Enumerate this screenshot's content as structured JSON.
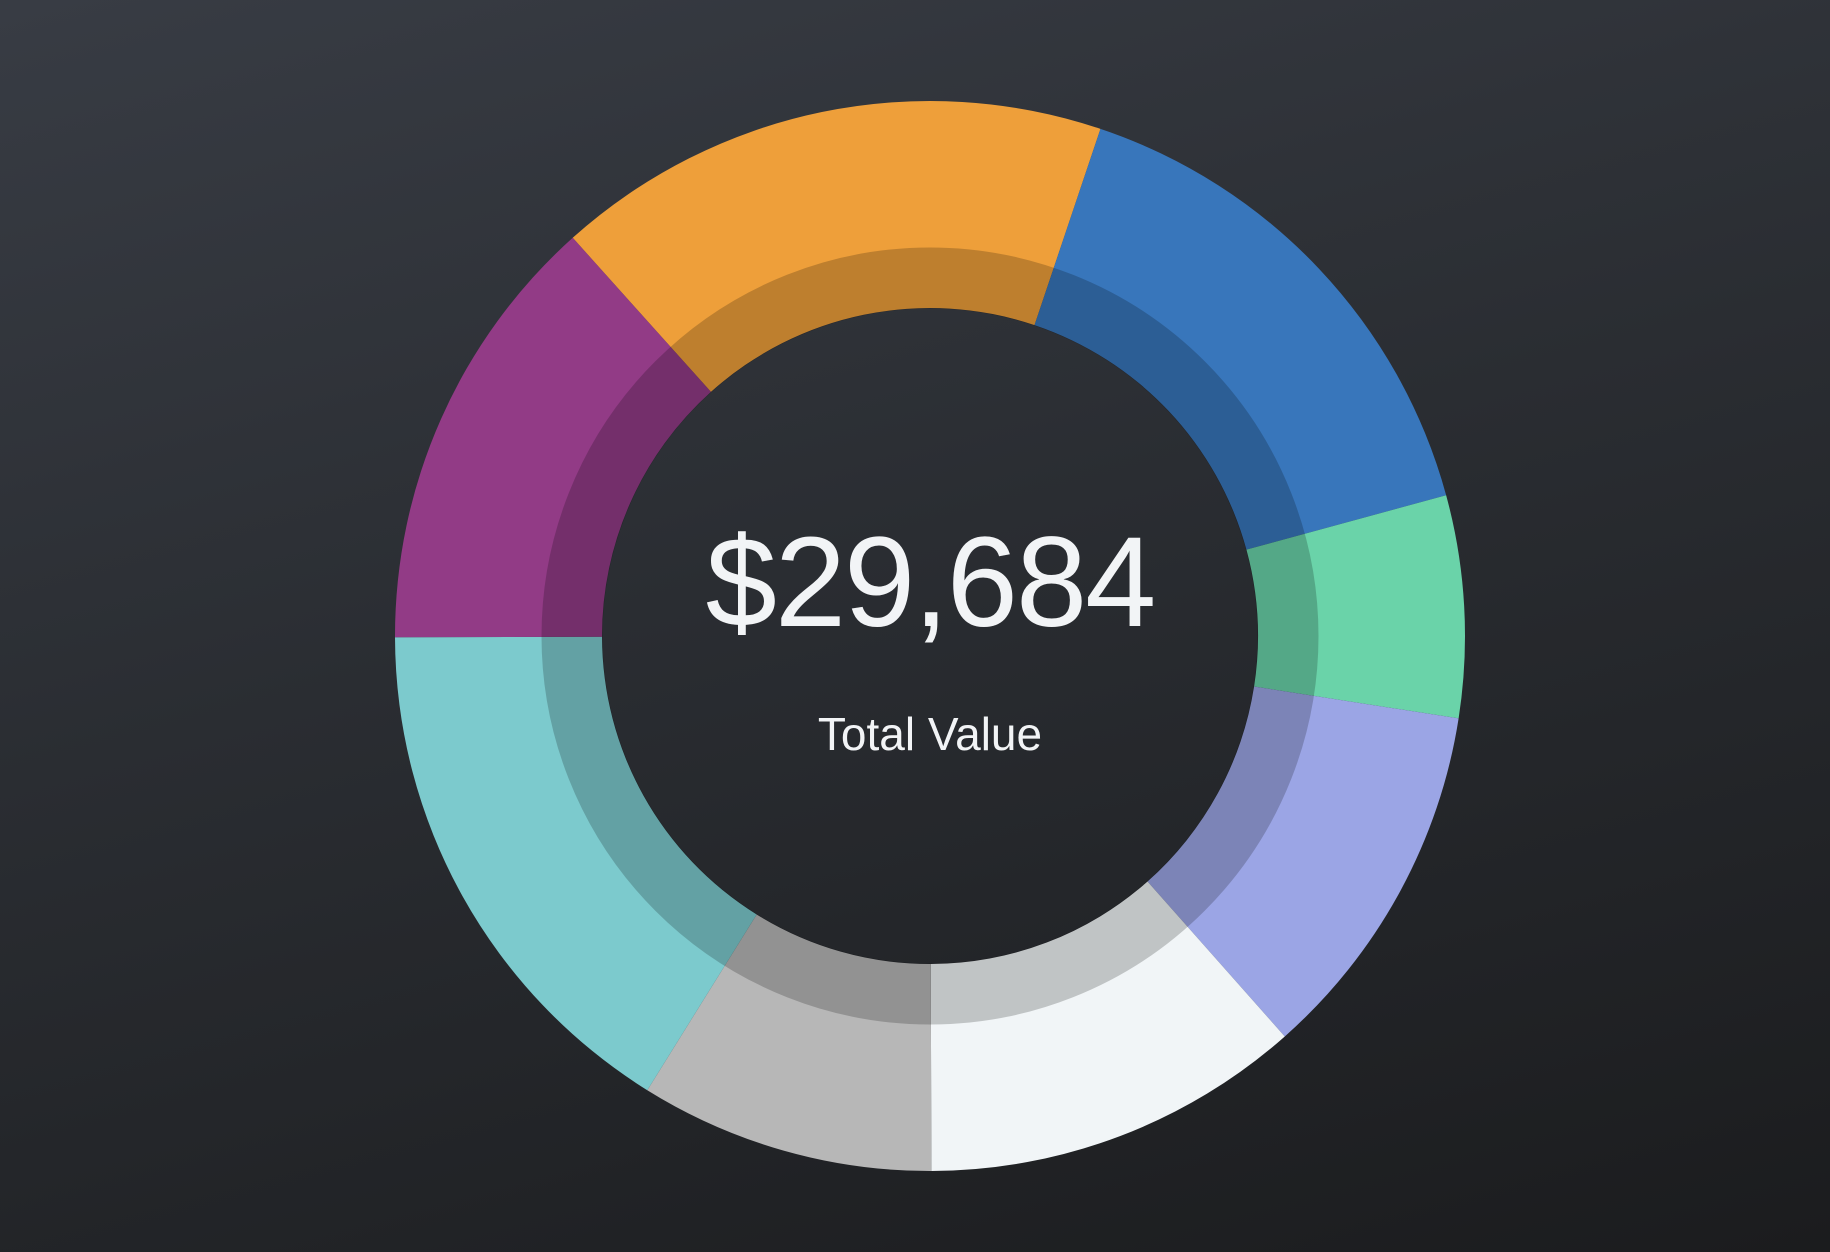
{
  "chart_data": {
    "type": "donut",
    "total": "$29,684",
    "total_label": "Total Value",
    "values": [
      16.8,
      15.6,
      6.7,
      11.0,
      11.5,
      8.9,
      16.1,
      13.4
    ],
    "colors": [
      "#ee9f3a",
      "#3876bb",
      "#6ad3a9",
      "#9ba5e5",
      "#f1f5f7",
      "#b7b7b7",
      "#7ccacd",
      "#923b86"
    ]
  }
}
